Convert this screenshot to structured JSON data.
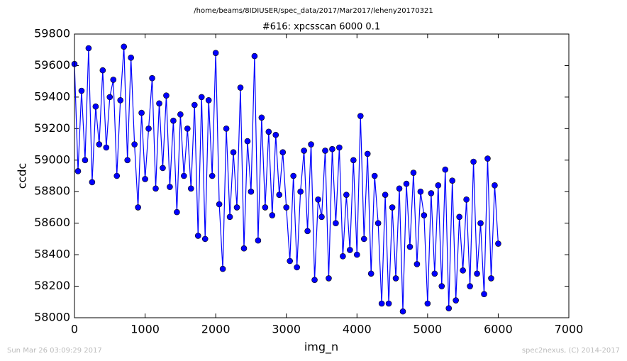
{
  "chart_data": {
    "type": "line",
    "title": "/home/beams/8IDIUSER/spec_data/2017/Mar2017/leheny20170321",
    "subtitle": "#616: xpcsscan 6000 0.1",
    "x_label": "img_n",
    "y_label": "ccdc",
    "footer_left": "Sun Mar 26 03:09:29 2017",
    "footer_right": "spec2nexus, (C) 2014-2017",
    "color": "#0000ff",
    "xlim": [
      0,
      7000
    ],
    "xticks": [
      0,
      1000,
      2000,
      3000,
      4000,
      5000,
      6000,
      7000
    ],
    "ylim": [
      58000,
      59800
    ],
    "yticks": [
      58000,
      58200,
      58400,
      58600,
      58800,
      59000,
      59200,
      59400,
      59600,
      59800
    ],
    "x": [
      0,
      50,
      100,
      150,
      200,
      250,
      300,
      350,
      400,
      450,
      500,
      550,
      600,
      650,
      700,
      750,
      800,
      850,
      900,
      950,
      1000,
      1050,
      1100,
      1150,
      1200,
      1250,
      1300,
      1350,
      1400,
      1450,
      1500,
      1550,
      1600,
      1650,
      1700,
      1750,
      1800,
      1850,
      1900,
      1950,
      2000,
      2050,
      2100,
      2150,
      2200,
      2250,
      2300,
      2350,
      2400,
      2450,
      2500,
      2550,
      2600,
      2650,
      2700,
      2750,
      2800,
      2850,
      2900,
      2950,
      3000,
      3050,
      3100,
      3150,
      3200,
      3250,
      3300,
      3350,
      3400,
      3450,
      3500,
      3550,
      3600,
      3650,
      3700,
      3750,
      3800,
      3850,
      3900,
      3950,
      4000,
      4050,
      4100,
      4150,
      4200,
      4250,
      4300,
      4350,
      4400,
      4450,
      4500,
      4550,
      4600,
      4650,
      4700,
      4750,
      4800,
      4850,
      4900,
      4950,
      5000,
      5050,
      5100,
      5150,
      5200,
      5250,
      5300,
      5350,
      5400,
      5450,
      5500,
      5550,
      5600,
      5650,
      5700,
      5750,
      5800,
      5850,
      5900,
      5950,
      6000
    ],
    "values": [
      59610,
      58930,
      59440,
      59000,
      59710,
      58860,
      59340,
      59100,
      59570,
      59080,
      59400,
      59510,
      58900,
      59380,
      59720,
      59000,
      59650,
      59100,
      58700,
      59300,
      58880,
      59200,
      59520,
      58820,
      59360,
      58950,
      59410,
      58830,
      59250,
      58670,
      59290,
      58900,
      59200,
      58820,
      59350,
      58520,
      59400,
      58500,
      59380,
      58900,
      59680,
      58720,
      58310,
      59200,
      58640,
      59050,
      58700,
      59460,
      58440,
      59120,
      58800,
      59660,
      58490,
      59270,
      58700,
      59180,
      58650,
      59160,
      58780,
      59050,
      58700,
      58360,
      58900,
      58320,
      58800,
      59060,
      58550,
      59100,
      58240,
      58750,
      58640,
      59060,
      58250,
      59070,
      58600,
      59080,
      58390,
      58780,
      58430,
      59000,
      58400,
      59280,
      58500,
      59040,
      58280,
      58900,
      58600,
      58090,
      58780,
      58090,
      58700,
      58250,
      58820,
      58040,
      58850,
      58450,
      58920,
      58340,
      58800,
      58650,
      58090,
      58790,
      58280,
      58840,
      58200,
      58940,
      58060,
      58870,
      58110,
      58640,
      58300,
      58750,
      58200,
      58990,
      58280,
      58600,
      58150,
      59010,
      58250,
      58840,
      58470
    ]
  }
}
